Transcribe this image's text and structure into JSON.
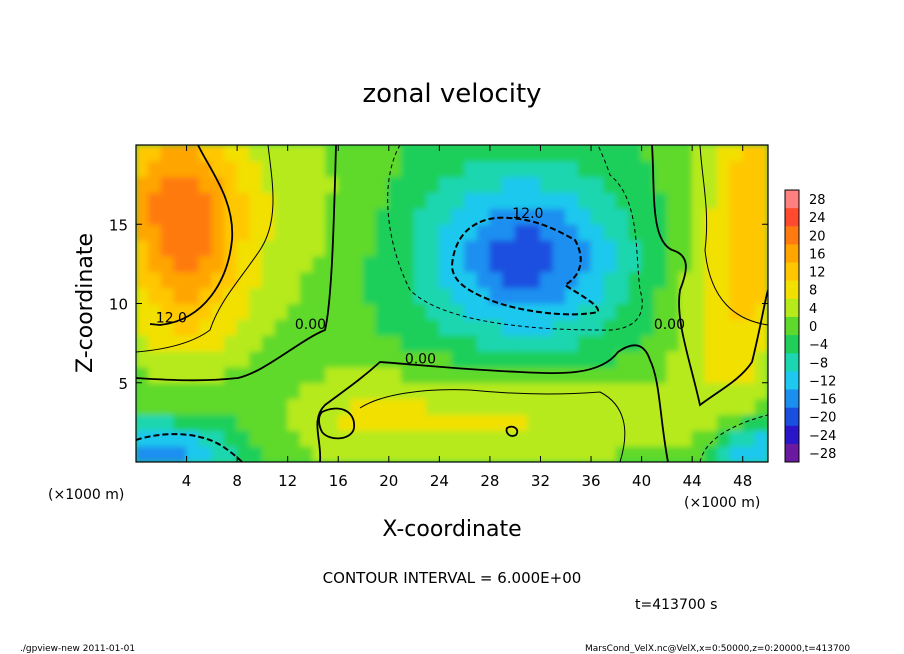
{
  "chart_data": {
    "type": "heatmap",
    "title": "zonal velocity",
    "xlabel": "X-coordinate",
    "ylabel": "Z-coordinate",
    "x_unit_left": "(×1000 m)",
    "x_unit_right": "(×1000 m)",
    "xlim": [
      0,
      50
    ],
    "ylim": [
      0,
      20
    ],
    "x_ticks": [
      4,
      8,
      12,
      16,
      20,
      24,
      28,
      32,
      36,
      40,
      44,
      48
    ],
    "y_ticks": [
      5,
      10,
      15
    ],
    "contour_interval_text": "CONTOUR INTERVAL = 6.000E+00",
    "time_text": "t=413700 s",
    "contour_labels": [
      {
        "text": "12.0",
        "x": 2.8,
        "y": 8.8
      },
      {
        "text": "0.00",
        "x": 13.8,
        "y": 8.4
      },
      {
        "text": "0.00",
        "x": 22.5,
        "y": 6.2
      },
      {
        "text": "12.0",
        "x": 31.0,
        "y": 15.4
      },
      {
        "text": "0.00",
        "x": 42.2,
        "y": 8.4
      }
    ],
    "colorbar": {
      "labels": [
        "28",
        "24",
        "20",
        "16",
        "12",
        "8",
        "4",
        "0",
        "−4",
        "−8",
        "−12",
        "−16",
        "−20",
        "−24",
        "−28"
      ],
      "colors": [
        "#ff8080",
        "#ff4a30",
        "#ff7a10",
        "#ffa500",
        "#ffc700",
        "#f2e000",
        "#b6ea1a",
        "#5fd92b",
        "#1fcf5a",
        "#1bd6b0",
        "#1ec8ee",
        "#1b8ff0",
        "#1a50e0",
        "#2a16c8",
        "#6a1aa0"
      ]
    },
    "field_centers": [
      {
        "x": 4,
        "y": 13,
        "value": 16,
        "sx": 3.5,
        "sy": 5
      },
      {
        "x": 2.5,
        "y": 17.5,
        "value": 10,
        "sx": 4,
        "sy": 3
      },
      {
        "x": 31,
        "y": 13,
        "value": -14,
        "sx": 5,
        "sy": 3.5
      },
      {
        "x": 30,
        "y": 12.5,
        "value": -6,
        "sx": 9,
        "sy": 6
      },
      {
        "x": 29,
        "y": 3,
        "value": 8,
        "sx": 9,
        "sy": 2.2
      },
      {
        "x": 17,
        "y": 3,
        "value": 4,
        "sx": 4,
        "sy": 2
      },
      {
        "x": 2,
        "y": 0.5,
        "value": -16,
        "sx": 4,
        "sy": 1.5
      },
      {
        "x": 49,
        "y": 0.5,
        "value": -16,
        "sx": 2.5,
        "sy": 1.5
      },
      {
        "x": 49,
        "y": 16,
        "value": 12,
        "sx": 2.5,
        "sy": 6
      },
      {
        "x": 46,
        "y": 9,
        "value": 6,
        "sx": 3,
        "sy": 6
      },
      {
        "x": 13,
        "y": 16,
        "value": 4,
        "sx": 4,
        "sy": 5
      },
      {
        "x": 5,
        "y": 4,
        "value": -2,
        "sx": 6,
        "sy": 2.5
      }
    ]
  },
  "footer": {
    "left": "./gpview-new   2011-01-01",
    "right": "MarsCond_VelX.nc@VelX,x=0:50000,z=0:20000,t=413700"
  }
}
